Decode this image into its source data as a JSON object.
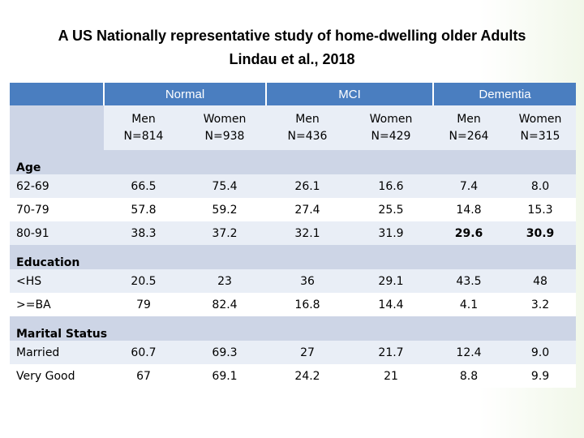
{
  "title": {
    "line1": "A US Nationally representative study of home-dwelling older Adults",
    "line2": "Lindau et al., 2018"
  },
  "groups": [
    "Normal",
    "MCI",
    "Dementia"
  ],
  "subheaders": [
    {
      "sex": "Men",
      "n": "N=814"
    },
    {
      "sex": "Women",
      "n": "N=938"
    },
    {
      "sex": "Men",
      "n": "N=436"
    },
    {
      "sex": "Women",
      "n": "N=429"
    },
    {
      "sex": "Men",
      "n": "N=264"
    },
    {
      "sex": "Women",
      "n": "N=315"
    }
  ],
  "sections": [
    {
      "name": "Age",
      "rows": [
        {
          "label": "62-69",
          "values": [
            "66.5",
            "75.4",
            "26.1",
            "16.6",
            "7.4",
            "8.0"
          ]
        },
        {
          "label": "70-79",
          "values": [
            "57.8",
            "59.2",
            "27.4",
            "25.5",
            "14.8",
            "15.3"
          ]
        },
        {
          "label": "80-91",
          "values": [
            "38.3",
            "37.2",
            "32.1",
            "31.9",
            "29.6",
            "30.9"
          ],
          "bold_cols": [
            4,
            5
          ]
        }
      ]
    },
    {
      "name": "Education",
      "rows": [
        {
          "label": "<HS",
          "values": [
            "20.5",
            "23",
            "36",
            "29.1",
            "43.5",
            "48"
          ]
        },
        {
          "label": ">=BA",
          "values": [
            "79",
            "82.4",
            "16.8",
            "14.4",
            "4.1",
            "3.2"
          ]
        }
      ]
    },
    {
      "name": "Marital Status",
      "rows": [
        {
          "label": "Married",
          "values": [
            "60.7",
            "69.3",
            "27",
            "21.7",
            "12.4",
            "9.0"
          ]
        },
        {
          "label": "Very Good",
          "values": [
            "67",
            "69.1",
            "24.2",
            "21",
            "8.8",
            "9.9"
          ]
        }
      ]
    }
  ],
  "colors": {
    "header_blue": "#4a7ec0",
    "band_dark": "#cdd5e6",
    "band_light": "#e9eef6"
  }
}
